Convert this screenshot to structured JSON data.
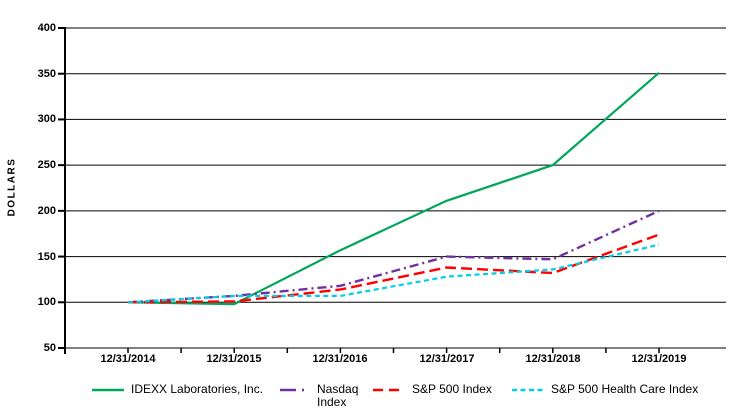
{
  "page": {
    "background": "#FFFFFF",
    "axis_color": "#000000",
    "text_color": "#000000"
  },
  "chart_data": {
    "type": "line",
    "title": "",
    "xlabel": "",
    "ylabel": "DOLLARS",
    "ylim": [
      50,
      400
    ],
    "grid": true,
    "legend_position": "bottom",
    "categories": [
      "12/31/2014",
      "12/31/2015",
      "12/31/2016",
      "12/31/2017",
      "12/31/2018",
      "12/31/2019"
    ],
    "yticks": [
      400,
      350,
      300,
      250,
      200,
      150,
      100,
      50
    ],
    "series": [
      {
        "name": "IDEXX Laboratories, Inc.",
        "color": "#00A65C",
        "style": "solid",
        "values": [
          100,
          98,
          157,
          211,
          250,
          351
        ]
      },
      {
        "name": "Nasdaq Index",
        "color": "#7030A0",
        "style": "dashdot",
        "values": [
          100,
          107,
          118,
          150,
          147,
          200
        ]
      },
      {
        "name": "S&P 500 Index",
        "color": "#FF0000",
        "style": "dash",
        "values": [
          100,
          101,
          114,
          138,
          132,
          174
        ]
      },
      {
        "name": "S&P 500 Health Care Index",
        "color": "#00CFE8",
        "style": "dense-dash",
        "values": [
          100,
          107,
          107,
          128,
          136,
          163
        ]
      }
    ]
  }
}
